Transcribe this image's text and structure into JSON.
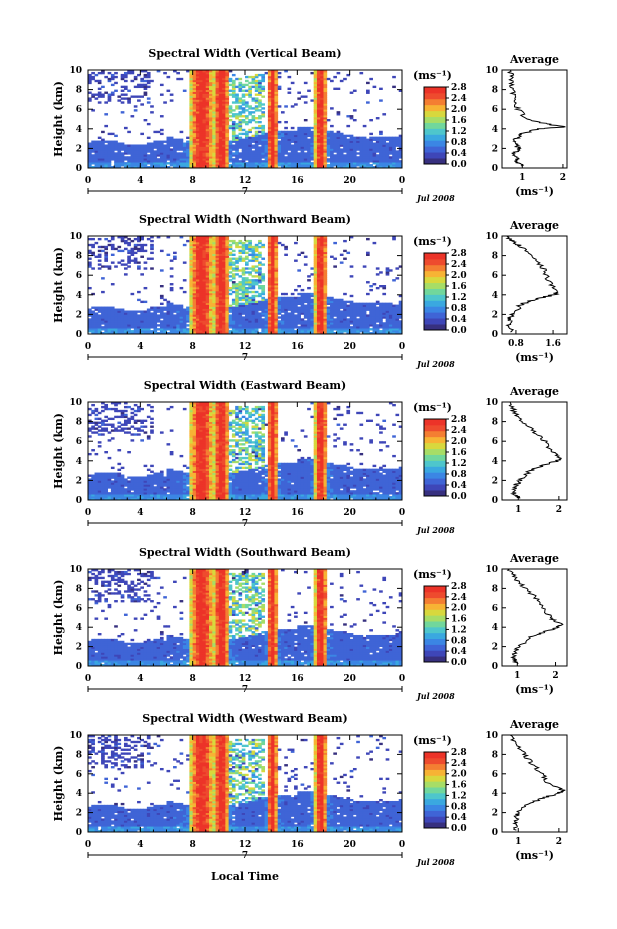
{
  "figure": {
    "xlabel": "Local Time",
    "date_label": "Jul 2008",
    "day_label": "7",
    "unit_label": "(ms⁻¹)"
  },
  "colors": {
    "colormap": [
      "#37307f",
      "#3e46b8",
      "#3f64d6",
      "#3b86e4",
      "#3aa8e0",
      "#4ec6cc",
      "#71d79c",
      "#a7dd66",
      "#d8d83d",
      "#f7b334",
      "#f47e32",
      "#ee4b2e",
      "#ec3328"
    ]
  },
  "chart_data": [
    {
      "type": "heatmap",
      "title": "Spectral Width (Vertical Beam)",
      "ylabel": "Height (km)",
      "x_ticks": [
        "0",
        "4",
        "8",
        "12",
        "16",
        "20",
        "0"
      ],
      "y_ticks": [
        "0",
        "2",
        "4",
        "6",
        "8",
        "10"
      ],
      "xlim": [
        0,
        24
      ],
      "ylim": [
        0,
        10
      ],
      "colorbar": {
        "ticks": [
          "0.0",
          "0.4",
          "0.8",
          "1.2",
          "1.6",
          "2.0",
          "2.4",
          "2.8"
        ],
        "range": [
          0,
          2.8
        ]
      },
      "average": {
        "title": "Average",
        "xlabel": "(ms⁻¹)",
        "ylabel": "",
        "x_ticks": [
          "1",
          "2"
        ],
        "xlim": [
          0.5,
          2.1
        ],
        "profile": [
          [
            0.2,
            1.0
          ],
          [
            0.6,
            0.85
          ],
          [
            1.0,
            0.9
          ],
          [
            1.5,
            0.8
          ],
          [
            2.0,
            0.95
          ],
          [
            2.5,
            0.8
          ],
          [
            3.0,
            0.85
          ],
          [
            3.5,
            1.0
          ],
          [
            4.0,
            1.4
          ],
          [
            4.2,
            2.05
          ],
          [
            4.5,
            1.6
          ],
          [
            5.0,
            1.1
          ],
          [
            6.0,
            0.9
          ],
          [
            7.0,
            0.8
          ],
          [
            8.0,
            0.75
          ],
          [
            9.0,
            0.75
          ],
          [
            10.0,
            0.7
          ]
        ]
      }
    },
    {
      "type": "heatmap",
      "title": "Spectral Width (Northward Beam)",
      "ylabel": "Height (km)",
      "x_ticks": [
        "0",
        "4",
        "8",
        "12",
        "16",
        "20",
        "0"
      ],
      "y_ticks": [
        "0",
        "2",
        "4",
        "6",
        "8",
        "10"
      ],
      "xlim": [
        0,
        24
      ],
      "ylim": [
        0,
        10
      ],
      "colorbar": {
        "ticks": [
          "0.0",
          "0.4",
          "0.8",
          "1.2",
          "1.6",
          "2.0",
          "2.4",
          "2.8"
        ],
        "range": [
          0,
          2.8
        ]
      },
      "average": {
        "title": "Average",
        "xlabel": "(ms⁻¹)",
        "ylabel": "",
        "x_ticks": [
          "0.8",
          "1.6"
        ],
        "xlim": [
          0.5,
          1.9
        ],
        "profile": [
          [
            0.2,
            0.7
          ],
          [
            0.8,
            0.62
          ],
          [
            1.5,
            0.68
          ],
          [
            2.0,
            0.75
          ],
          [
            3.0,
            0.9
          ],
          [
            3.5,
            1.2
          ],
          [
            4.0,
            1.6
          ],
          [
            4.3,
            1.75
          ],
          [
            5.0,
            1.55
          ],
          [
            6.0,
            1.45
          ],
          [
            7.0,
            1.35
          ],
          [
            8.0,
            1.1
          ],
          [
            9.0,
            0.9
          ],
          [
            9.5,
            0.7
          ],
          [
            10.0,
            0.65
          ]
        ]
      }
    },
    {
      "type": "heatmap",
      "title": "Spectral Width (Eastward Beam)",
      "ylabel": "Height (km)",
      "x_ticks": [
        "0",
        "4",
        "8",
        "12",
        "16",
        "20",
        "0"
      ],
      "y_ticks": [
        "0",
        "2",
        "4",
        "6",
        "8",
        "10"
      ],
      "xlim": [
        0,
        24
      ],
      "ylim": [
        0,
        10
      ],
      "colorbar": {
        "ticks": [
          "0.0",
          "0.4",
          "0.8",
          "1.2",
          "1.6",
          "2.0",
          "2.4",
          "2.8"
        ],
        "range": [
          0,
          2.8
        ]
      },
      "average": {
        "title": "Average",
        "xlabel": "",
        "ylabel": "",
        "x_ticks": [
          "1",
          "2"
        ],
        "xlim": [
          0.6,
          2.2
        ],
        "profile": [
          [
            0.2,
            1.0
          ],
          [
            0.7,
            0.9
          ],
          [
            1.5,
            0.95
          ],
          [
            2.0,
            1.05
          ],
          [
            3.0,
            1.3
          ],
          [
            3.5,
            1.6
          ],
          [
            4.0,
            1.95
          ],
          [
            4.3,
            2.05
          ],
          [
            5.0,
            1.8
          ],
          [
            6.0,
            1.65
          ],
          [
            7.0,
            1.4
          ],
          [
            8.0,
            1.1
          ],
          [
            9.0,
            0.9
          ],
          [
            10.0,
            0.8
          ]
        ]
      }
    },
    {
      "type": "heatmap",
      "title": "Spectral Width (Southward Beam)",
      "ylabel": "Height (km)",
      "x_ticks": [
        "0",
        "4",
        "8",
        "12",
        "16",
        "20",
        "0"
      ],
      "y_ticks": [
        "0",
        "2",
        "4",
        "6",
        "8",
        "10"
      ],
      "xlim": [
        0,
        24
      ],
      "ylim": [
        0,
        10
      ],
      "colorbar": {
        "ticks": [
          "0.0",
          "0.4",
          "0.8",
          "1.2",
          "1.6",
          "2.0",
          "2.4",
          "2.8"
        ],
        "range": [
          0,
          2.8
        ]
      },
      "average": {
        "title": "Average",
        "xlabel": "(ms⁻¹)",
        "ylabel": "",
        "x_ticks": [
          "1",
          "2"
        ],
        "xlim": [
          0.6,
          2.3
        ],
        "profile": [
          [
            0.2,
            1.0
          ],
          [
            0.8,
            0.9
          ],
          [
            1.5,
            0.95
          ],
          [
            2.0,
            1.05
          ],
          [
            3.0,
            1.35
          ],
          [
            3.5,
            1.7
          ],
          [
            4.0,
            2.05
          ],
          [
            4.3,
            2.15
          ],
          [
            5.0,
            1.85
          ],
          [
            6.0,
            1.7
          ],
          [
            7.0,
            1.5
          ],
          [
            8.0,
            1.2
          ],
          [
            9.0,
            0.95
          ],
          [
            10.0,
            0.8
          ]
        ]
      }
    },
    {
      "type": "heatmap",
      "title": "Spectral Width (Westward Beam)",
      "ylabel": "Height (km)",
      "x_ticks": [
        "0",
        "4",
        "8",
        "12",
        "16",
        "20",
        "0"
      ],
      "y_ticks": [
        "0",
        "2",
        "4",
        "6",
        "8",
        "10"
      ],
      "xlim": [
        0,
        24
      ],
      "ylim": [
        0,
        10
      ],
      "colorbar": {
        "ticks": [
          "0.0",
          "0.4",
          "0.8",
          "1.2",
          "1.6",
          "2.0",
          "2.4",
          "2.8"
        ],
        "range": [
          0,
          2.8
        ]
      },
      "average": {
        "title": "Average",
        "xlabel": "(ms⁻¹)",
        "ylabel": "",
        "x_ticks": [
          "1",
          "2"
        ],
        "xlim": [
          0.6,
          2.2
        ],
        "profile": [
          [
            0.2,
            0.95
          ],
          [
            0.8,
            0.9
          ],
          [
            1.5,
            0.95
          ],
          [
            2.0,
            1.0
          ],
          [
            3.0,
            1.3
          ],
          [
            3.5,
            1.6
          ],
          [
            4.0,
            2.0
          ],
          [
            4.3,
            2.1
          ],
          [
            5.0,
            1.75
          ],
          [
            6.0,
            1.6
          ],
          [
            7.0,
            1.35
          ],
          [
            8.0,
            1.15
          ],
          [
            9.0,
            0.95
          ],
          [
            10.0,
            0.8
          ]
        ]
      }
    }
  ]
}
